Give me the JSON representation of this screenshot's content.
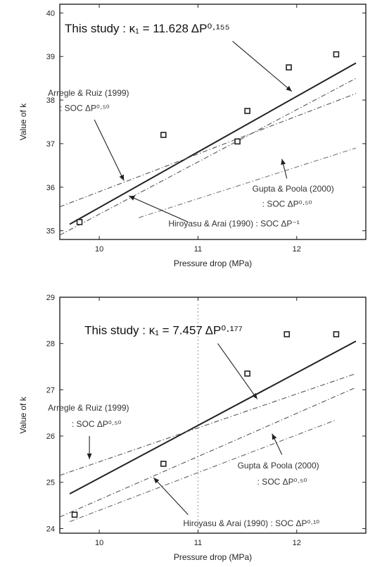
{
  "chart_data": [
    {
      "type": "scatter",
      "xlabel": "Pressure drop (MPa)",
      "ylabel": "Value of k",
      "xlim": [
        9.6,
        12.7
      ],
      "ylim": [
        34.8,
        40.2
      ],
      "xticks": [
        10,
        11,
        12
      ],
      "yticks": [
        35,
        36,
        37,
        38,
        39,
        40
      ],
      "xtick_labels": [
        "10",
        "11",
        "12"
      ],
      "ytick_labels": [
        "35",
        "36",
        "37",
        "38",
        "39",
        "40"
      ],
      "grid": false,
      "points": [
        {
          "x": 9.8,
          "y": 35.2
        },
        {
          "x": 10.65,
          "y": 37.2
        },
        {
          "x": 11.4,
          "y": 37.05
        },
        {
          "x": 11.5,
          "y": 37.75
        },
        {
          "x": 11.92,
          "y": 38.75
        },
        {
          "x": 12.4,
          "y": 39.05
        }
      ],
      "lines": [
        {
          "x": [
            9.7,
            12.6
          ],
          "y": [
            35.15,
            38.85
          ],
          "style": "solid",
          "color": "#222222"
        },
        {
          "x": [
            9.6,
            12.6
          ],
          "y": [
            35.55,
            38.15
          ],
          "style": "dashdot",
          "color": "#555555"
        },
        {
          "x": [
            9.6,
            12.6
          ],
          "y": [
            34.9,
            38.5
          ],
          "style": "dashdot",
          "color": "#555555"
        },
        {
          "x": [
            10.4,
            12.6
          ],
          "y": [
            35.3,
            36.9
          ],
          "style": "dashdot",
          "color": "#777777"
        }
      ],
      "annotations": [
        {
          "text": "This study : κ₁ = 11.628 ΔP⁰·¹⁵⁵",
          "size": "big",
          "tx": 9.65,
          "ty": 39.55,
          "from": [
            11.35,
            39.35
          ],
          "to": [
            11.95,
            38.2
          ]
        },
        {
          "text": "Arregle & Ruiz (1999)",
          "size": "normal",
          "tx": 9.48,
          "ty": 38.1,
          "from": [
            9.95,
            37.55
          ],
          "to": [
            10.25,
            36.15
          ]
        },
        {
          "text": ": SOC ΔP⁰·⁵⁰",
          "size": "normal",
          "tx": 9.6,
          "ty": 37.75
        },
        {
          "text": "Gupta & Poola (2000)",
          "size": "normal",
          "tx": 11.55,
          "ty": 35.9,
          "from": [
            11.9,
            36.2
          ],
          "to": [
            11.85,
            36.65
          ]
        },
        {
          "text": ": SOC ΔP⁰·⁵⁰",
          "size": "normal",
          "tx": 11.65,
          "ty": 35.55
        },
        {
          "text": "Hiroyasu & Arai (1990) : SOC ΔP⁻¹",
          "size": "normal",
          "tx": 10.7,
          "ty": 35.1,
          "from": [
            10.9,
            35.2
          ],
          "to": [
            10.3,
            35.8
          ]
        }
      ]
    },
    {
      "type": "scatter",
      "xlabel": "Pressure drop (MPa)",
      "ylabel": "Value of k",
      "xlim": [
        9.6,
        12.7
      ],
      "ylim": [
        23.9,
        29.0
      ],
      "xticks": [
        10,
        11,
        12
      ],
      "yticks": [
        24,
        25,
        26,
        27,
        28,
        29
      ],
      "xtick_labels": [
        "10",
        "11",
        "12"
      ],
      "ytick_labels": [
        "24",
        "25",
        "26",
        "27",
        "28",
        "29"
      ],
      "grid": false,
      "points": [
        {
          "x": 9.75,
          "y": 24.3
        },
        {
          "x": 10.65,
          "y": 25.4
        },
        {
          "x": 11.5,
          "y": 27.35
        },
        {
          "x": 11.9,
          "y": 28.2
        },
        {
          "x": 12.4,
          "y": 28.2
        }
      ],
      "lines": [
        {
          "x": [
            9.7,
            12.6
          ],
          "y": [
            24.75,
            28.05
          ],
          "style": "solid",
          "color": "#222222"
        },
        {
          "x": [
            9.6,
            12.6
          ],
          "y": [
            25.15,
            27.35
          ],
          "style": "dashdot",
          "color": "#555555"
        },
        {
          "x": [
            9.6,
            12.6
          ],
          "y": [
            24.25,
            27.05
          ],
          "style": "dashdot",
          "color": "#555555"
        },
        {
          "x": [
            9.7,
            12.4
          ],
          "y": [
            24.15,
            26.35
          ],
          "style": "dashdot",
          "color": "#666666"
        }
      ],
      "annotations": [
        {
          "text": "This study : κ₁ = 7.457 ΔP⁰·¹⁷⁷",
          "size": "big",
          "tx": 9.85,
          "ty": 28.2,
          "from": [
            11.2,
            28.0
          ],
          "to": [
            11.6,
            26.8
          ]
        },
        {
          "text": "Arregle & Ruiz (1999)",
          "size": "normal",
          "tx": 9.48,
          "ty": 26.55,
          "from": [
            9.9,
            26.0
          ],
          "to": [
            9.9,
            25.5
          ]
        },
        {
          "text": ": SOC ΔP⁰·⁵⁰",
          "size": "normal",
          "tx": 9.72,
          "ty": 26.2
        },
        {
          "text": "Gupta & Poola (2000)",
          "size": "normal",
          "tx": 11.4,
          "ty": 25.3,
          "from": [
            11.85,
            25.6
          ],
          "to": [
            11.75,
            26.05
          ]
        },
        {
          "text": ": SOC ΔP⁰·⁵⁰",
          "size": "normal",
          "tx": 11.6,
          "ty": 24.95
        },
        {
          "text": "Hiroyasu & Arai (1990) : SOC ΔP⁰·¹⁰",
          "size": "normal",
          "tx": 10.85,
          "ty": 24.05,
          "from": [
            10.9,
            24.3
          ],
          "to": [
            10.55,
            25.1
          ]
        }
      ],
      "guide_x": 11.0
    }
  ]
}
